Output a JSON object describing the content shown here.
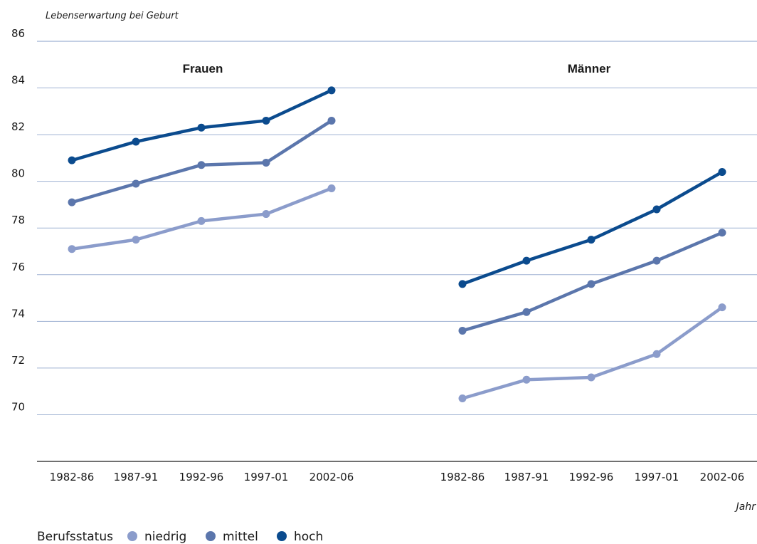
{
  "chart_data": {
    "type": "line",
    "ylabel": "Lebenserwartung bei Geburt",
    "xlabel": "Jahr",
    "ylim": [
      68,
      86
    ],
    "yticks": [
      70,
      72,
      74,
      76,
      78,
      80,
      82,
      84,
      86
    ],
    "grid": true,
    "legend_title": "Berufsstatus",
    "legend_position": "bottom-left",
    "colors": {
      "niedrig": "#8b9ccb",
      "mittel": "#5b76ac",
      "hoch": "#0b4b8e",
      "grid": "#9fb2d3",
      "axis": "#1a1a1a",
      "text": "#1a1a1a"
    },
    "legend": [
      {
        "key": "niedrig",
        "label": "niedrig"
      },
      {
        "key": "mittel",
        "label": "mittel"
      },
      {
        "key": "hoch",
        "label": "hoch"
      }
    ],
    "panels": [
      {
        "title": "Frauen",
        "categories": [
          "1982-86",
          "1987-91",
          "1992-96",
          "1997-01",
          "2002-06"
        ],
        "series": [
          {
            "name": "niedrig",
            "values": [
              77.1,
              77.5,
              78.3,
              78.6,
              79.7
            ]
          },
          {
            "name": "mittel",
            "values": [
              79.1,
              79.9,
              80.7,
              80.8,
              82.6
            ]
          },
          {
            "name": "hoch",
            "values": [
              80.9,
              81.7,
              82.3,
              82.6,
              83.9
            ]
          }
        ]
      },
      {
        "title": "Männer",
        "categories": [
          "1982-86",
          "1987-91",
          "1992-96",
          "1997-01",
          "2002-06"
        ],
        "series": [
          {
            "name": "niedrig",
            "values": [
              70.7,
              71.5,
              71.6,
              72.6,
              74.6
            ]
          },
          {
            "name": "mittel",
            "values": [
              73.6,
              74.4,
              75.6,
              76.6,
              77.8
            ]
          },
          {
            "name": "hoch",
            "values": [
              75.6,
              76.6,
              77.5,
              78.8,
              80.4
            ]
          }
        ]
      }
    ]
  }
}
